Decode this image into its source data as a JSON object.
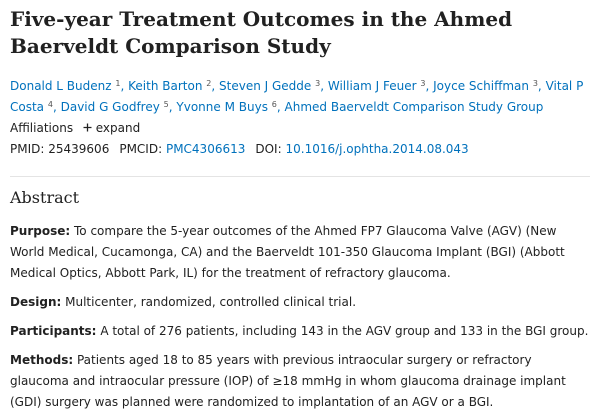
{
  "article": {
    "title": "Five-year Treatment Outcomes in the Ahmed Baerveldt Comparison Study",
    "authors": [
      {
        "name": "Donald L Budenz",
        "sup": "1",
        "sep": ","
      },
      {
        "name": "Keith Barton",
        "sup": "2",
        "sep": ","
      },
      {
        "name": "Steven J Gedde",
        "sup": "3",
        "sep": ","
      },
      {
        "name": "William J Feuer",
        "sup": "3",
        "sep": ","
      },
      {
        "name": "Joyce Schiffman",
        "sup": "3",
        "sep": ","
      },
      {
        "name": "Vital P Costa",
        "sup": "4",
        "sep": ","
      },
      {
        "name": "David G Godfrey",
        "sup": "5",
        "sep": ","
      },
      {
        "name": "Yvonne M Buys",
        "sup": "6",
        "sep": ","
      },
      {
        "name": "Ahmed Baerveldt Comparison Study Group"
      }
    ],
    "affiliations": {
      "label": "Affiliations",
      "toggle": "expand"
    },
    "identifiers": [
      {
        "label": "PMID:",
        "value": "25439606"
      },
      {
        "label": "PMCID:",
        "value": "PMC4306613",
        "link": true
      },
      {
        "label": "DOI:",
        "value": "10.1016/j.ophtha.2014.08.043",
        "link": true
      }
    ],
    "abstract": {
      "heading": "Abstract",
      "sections": [
        {
          "label": "Purpose:",
          "text": "To compare the 5-year outcomes of the Ahmed FP7 Glaucoma Valve (AGV) (New World Medical, Cucamonga, CA) and the Baerveldt 101-350 Glaucoma Implant (BGI) (Abbott Medical Optics, Abbott Park, IL) for the treatment of refractory glaucoma."
        },
        {
          "label": "Design:",
          "text": "Multicenter, randomized, controlled clinical trial."
        },
        {
          "label": "Participants:",
          "text": "A total of 276 patients, including 143 in the AGV group and 133 in the BGI group."
        },
        {
          "label": "Methods:",
          "text": "Patients aged 18 to 85 years with previous intraocular surgery or refractory glaucoma and intraocular pressure (IOP) of ≥18 mmHg in whom glaucoma drainage implant (GDI) surgery was planned were randomized to implantation of an AGV or a BGI."
        }
      ]
    }
  }
}
